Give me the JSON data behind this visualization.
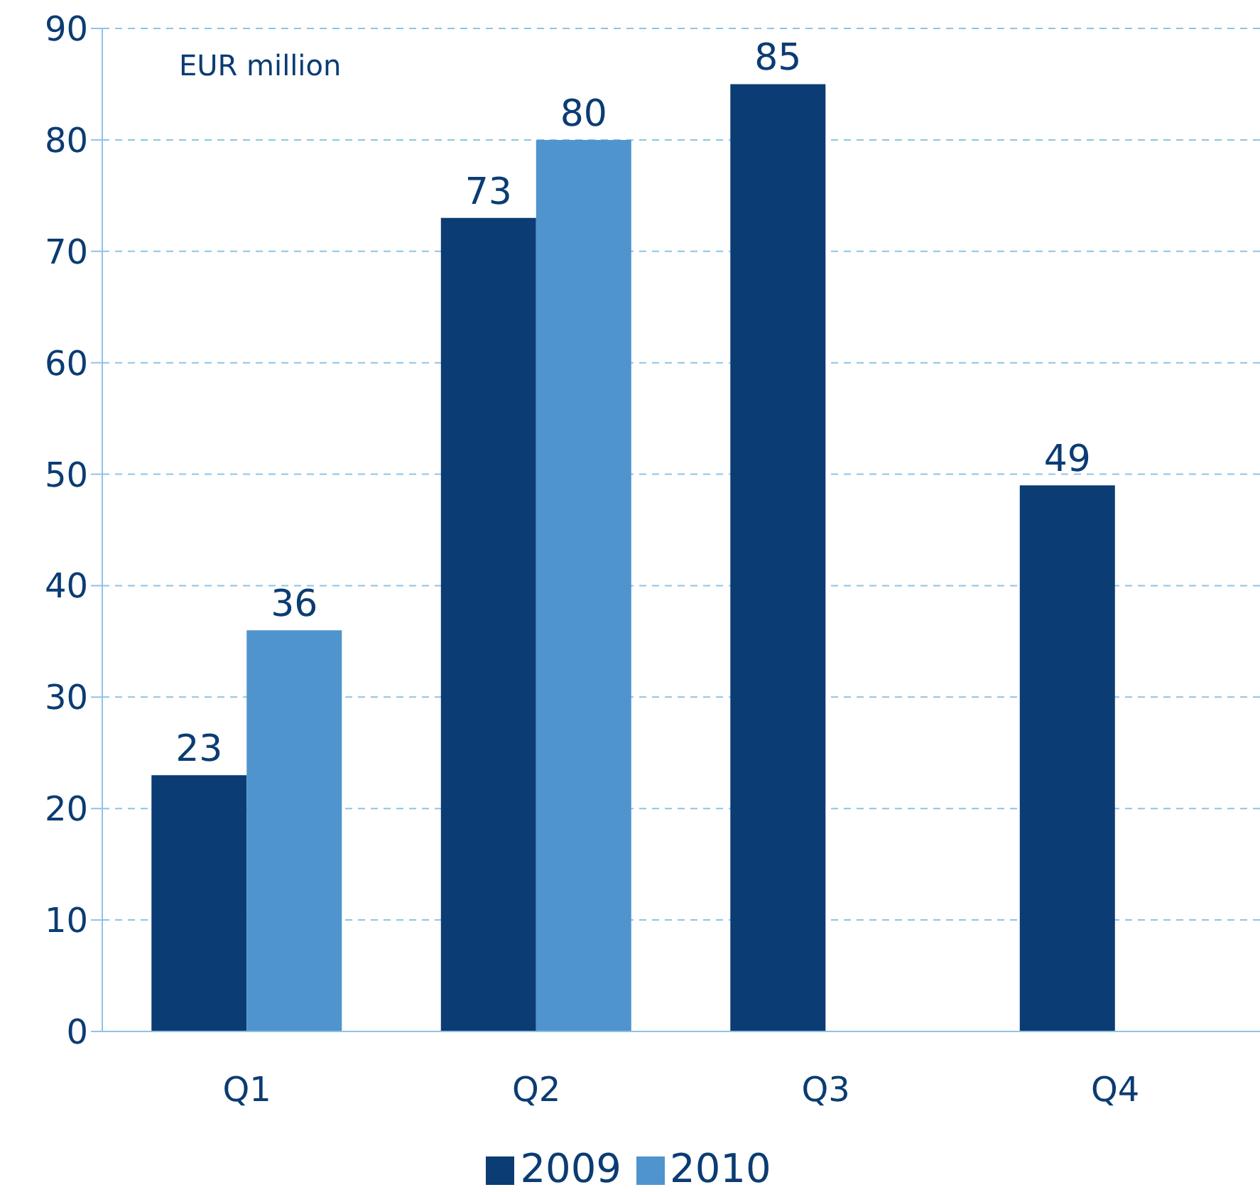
{
  "chart_data": {
    "type": "bar",
    "ylabel": "EUR million",
    "categories": [
      "Q1",
      "Q2",
      "Q3",
      "Q4"
    ],
    "series": [
      {
        "name": "2009",
        "color": "#0b3c73",
        "values": [
          23,
          73,
          85,
          49
        ]
      },
      {
        "name": "2010",
        "color": "#4f94cd",
        "values": [
          36,
          80,
          null,
          null
        ]
      }
    ],
    "ylim": [
      0,
      90
    ],
    "yticks": [
      0,
      10,
      20,
      30,
      40,
      50,
      60,
      70,
      80,
      90
    ],
    "grid": "y",
    "legend": "bottom",
    "data_labels": true
  }
}
